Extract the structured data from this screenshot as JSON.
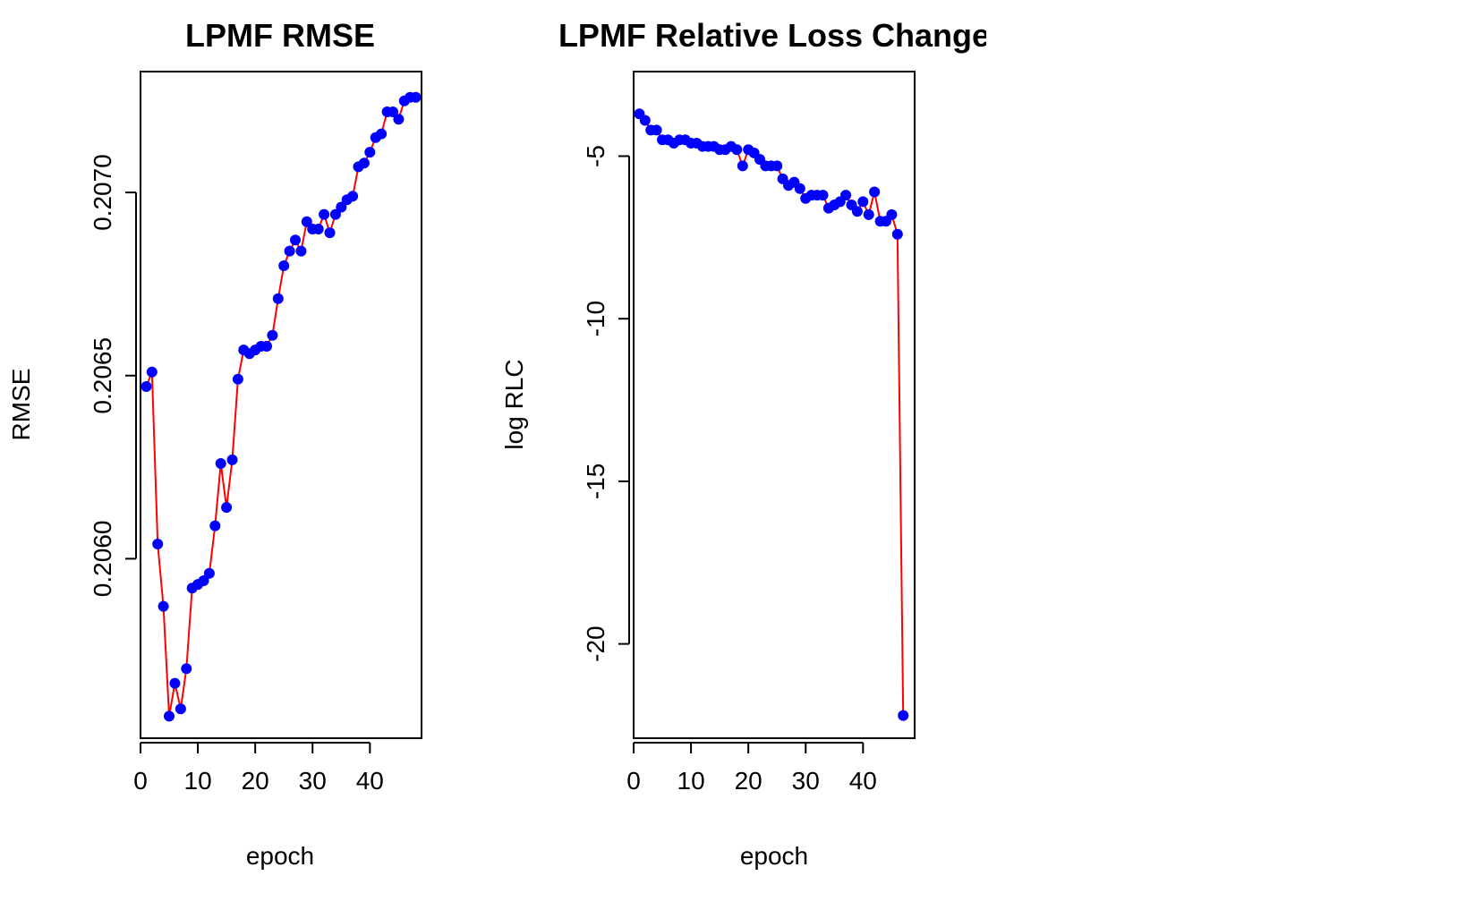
{
  "colors": {
    "line": "#ff0000",
    "point": "#0000ff",
    "axis": "#000000",
    "background": "#ffffff"
  },
  "chart_data": [
    {
      "type": "line",
      "title": "LPMF RMSE",
      "xlabel": "epoch",
      "ylabel": "RMSE",
      "xlim": [
        0,
        49
      ],
      "ylim": [
        0.20551,
        0.20733
      ],
      "xticks": [
        0,
        10,
        20,
        30,
        40
      ],
      "xtick_labels": [
        "0",
        "10",
        "20",
        "30",
        "40"
      ],
      "yticks": [
        0.206,
        0.2065,
        0.207
      ],
      "ytick_labels": [
        "0.2060",
        "0.2065",
        "0.2070"
      ],
      "grid": false,
      "legend": "none",
      "series": [
        {
          "x": [
            1,
            2,
            3,
            4,
            5,
            6,
            7,
            8,
            9,
            10,
            11,
            12,
            13,
            14,
            15,
            16,
            17,
            18,
            19,
            20,
            21,
            22,
            23,
            24,
            25,
            26,
            27,
            28,
            29,
            30,
            31,
            32,
            33,
            34,
            35,
            36,
            37,
            38,
            39,
            40,
            41,
            42,
            43,
            44,
            45,
            46,
            47,
            48
          ],
          "y": [
            0.20647,
            0.20651,
            0.20604,
            0.20587,
            0.20557,
            0.20566,
            0.20559,
            0.2057,
            0.20592,
            0.20593,
            0.20594,
            0.20596,
            0.20609,
            0.20626,
            0.20614,
            0.20627,
            0.20649,
            0.20657,
            0.20656,
            0.20657,
            0.20658,
            0.20658,
            0.20661,
            0.20671,
            0.2068,
            0.20684,
            0.20687,
            0.20684,
            0.20692,
            0.2069,
            0.2069,
            0.20694,
            0.20689,
            0.20694,
            0.20696,
            0.20698,
            0.20699,
            0.20707,
            0.20708,
            0.20711,
            0.20715,
            0.20716,
            0.20722,
            0.20722,
            0.2072,
            0.20725,
            0.20726,
            0.20726
          ]
        }
      ]
    },
    {
      "type": "line",
      "title": "LPMF Relative Loss Change",
      "xlabel": "epoch",
      "ylabel": "log RLC",
      "xlim": [
        0,
        49
      ],
      "ylim": [
        -22.9,
        -2.4
      ],
      "xticks": [
        0,
        10,
        20,
        30,
        40
      ],
      "xtick_labels": [
        "0",
        "10",
        "20",
        "30",
        "40"
      ],
      "yticks": [
        -20,
        -15,
        -10,
        -5
      ],
      "ytick_labels": [
        "-20",
        "-15",
        "-10",
        "-5"
      ],
      "grid": false,
      "legend": "none",
      "series": [
        {
          "x": [
            1,
            2,
            3,
            4,
            5,
            6,
            7,
            8,
            9,
            10,
            11,
            12,
            13,
            14,
            15,
            16,
            17,
            18,
            19,
            20,
            21,
            22,
            23,
            24,
            25,
            26,
            27,
            28,
            29,
            30,
            31,
            32,
            33,
            34,
            35,
            36,
            37,
            38,
            39,
            40,
            41,
            42,
            43,
            44,
            45,
            46,
            47
          ],
          "y": [
            -3.7,
            -3.9,
            -4.2,
            -4.2,
            -4.5,
            -4.5,
            -4.6,
            -4.5,
            -4.5,
            -4.6,
            -4.6,
            -4.7,
            -4.7,
            -4.7,
            -4.8,
            -4.8,
            -4.7,
            -4.8,
            -5.3,
            -4.8,
            -4.9,
            -5.1,
            -5.3,
            -5.3,
            -5.3,
            -5.7,
            -5.9,
            -5.8,
            -6.0,
            -6.3,
            -6.2,
            -6.2,
            -6.2,
            -6.6,
            -6.5,
            -6.4,
            -6.2,
            -6.5,
            -6.7,
            -6.4,
            -6.8,
            -6.1,
            -7.0,
            -7.0,
            -6.8,
            -7.4,
            -22.2
          ]
        }
      ]
    }
  ]
}
